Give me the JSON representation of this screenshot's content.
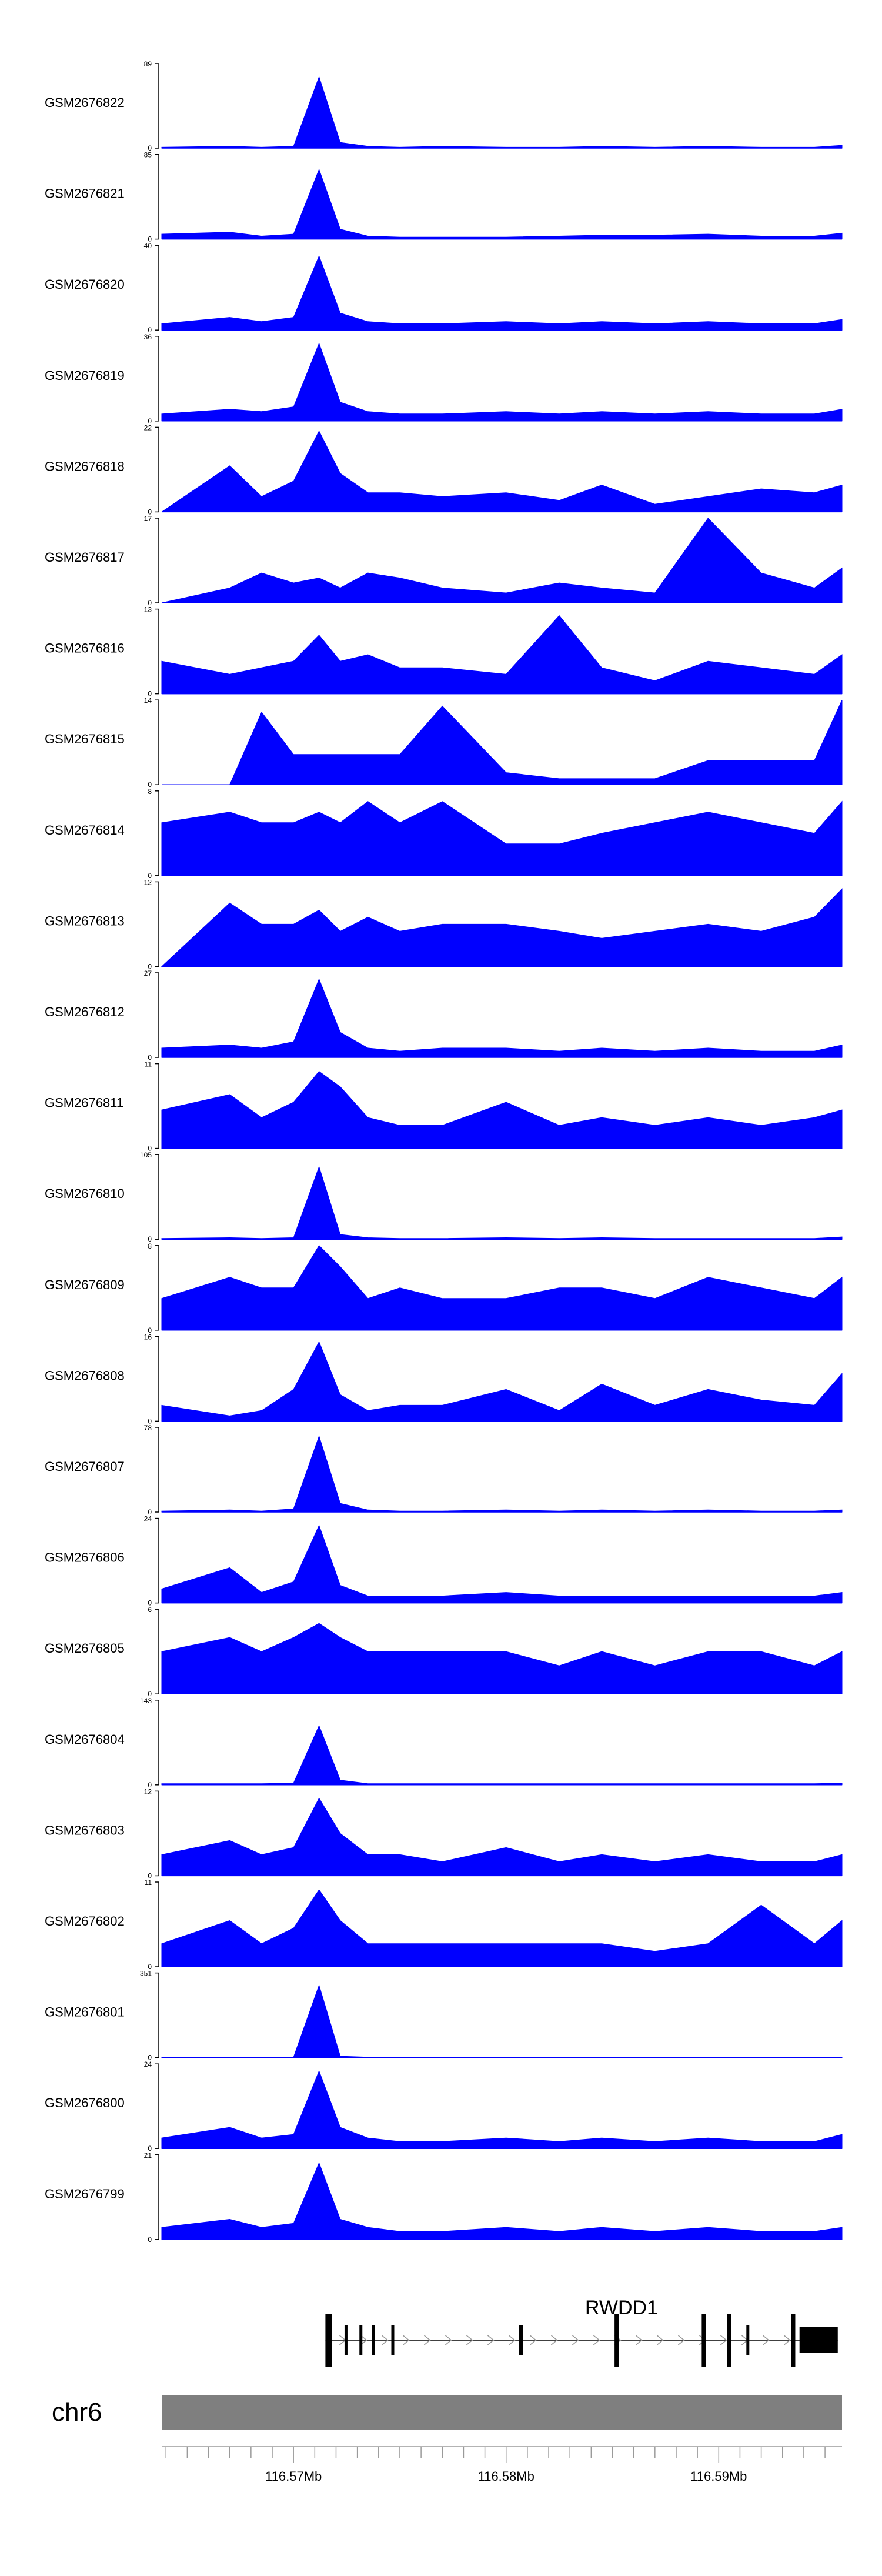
{
  "chart_data": {
    "type": "area",
    "title": "",
    "colors": {
      "fill": "#0000ff",
      "axis": "#000000",
      "ideogram": "#7f7f7f",
      "gene": "#000000",
      "intron_arrow": "#9a9a9a"
    },
    "x": [
      116.5638,
      116.567,
      116.5685,
      116.57,
      116.5712,
      116.5722,
      116.5735,
      116.575,
      116.577,
      116.58,
      116.5825,
      116.5845,
      116.587,
      116.5895,
      116.592,
      116.5945,
      116.5958
    ],
    "tracks": [
      {
        "label": "GSM2676822",
        "ymin": "0",
        "ymax": "89",
        "values": [
          1,
          2,
          1,
          2,
          75,
          6,
          2,
          1,
          2,
          1,
          1,
          2,
          1,
          2,
          1,
          1,
          3
        ]
      },
      {
        "label": "GSM2676821",
        "ymin": "0",
        "ymax": "85",
        "values": [
          5,
          7,
          3,
          5,
          70,
          10,
          3,
          2,
          2,
          2,
          3,
          4,
          4,
          5,
          3,
          3,
          6
        ]
      },
      {
        "label": "GSM2676820",
        "ymin": "0",
        "ymax": "40",
        "values": [
          3,
          6,
          4,
          6,
          35,
          8,
          4,
          3,
          3,
          4,
          3,
          4,
          3,
          4,
          3,
          3,
          5
        ]
      },
      {
        "label": "GSM2676819",
        "ymin": "0",
        "ymax": "36",
        "values": [
          3,
          5,
          4,
          6,
          33,
          8,
          4,
          3,
          3,
          4,
          3,
          4,
          3,
          4,
          3,
          3,
          5
        ]
      },
      {
        "label": "GSM2676818",
        "ymin": "0",
        "ymax": "22",
        "values": [
          0,
          12,
          4,
          8,
          21,
          10,
          5,
          5,
          4,
          5,
          3,
          7,
          2,
          4,
          6,
          5,
          7
        ]
      },
      {
        "label": "GSM2676817",
        "ymin": "0",
        "ymax": "17",
        "values": [
          0,
          3,
          6,
          4,
          5,
          3,
          6,
          5,
          3,
          2,
          4,
          3,
          2,
          17,
          6,
          3,
          7
        ]
      },
      {
        "label": "GSM2676816",
        "ymin": "0",
        "ymax": "13",
        "values": [
          5,
          3,
          4,
          5,
          9,
          5,
          6,
          4,
          4,
          3,
          12,
          4,
          2,
          5,
          4,
          3,
          6
        ]
      },
      {
        "label": "GSM2676815",
        "ymin": "0",
        "ymax": "14",
        "values": [
          0,
          0,
          12,
          5,
          5,
          5,
          5,
          5,
          13,
          2,
          1,
          1,
          1,
          4,
          4,
          4,
          14
        ]
      },
      {
        "label": "GSM2676814",
        "ymin": "0",
        "ymax": "8",
        "values": [
          5,
          6,
          5,
          5,
          6,
          5,
          7,
          5,
          7,
          3,
          3,
          4,
          5,
          6,
          5,
          4,
          7
        ]
      },
      {
        "label": "GSM2676813",
        "ymin": "0",
        "ymax": "12",
        "values": [
          0,
          9,
          6,
          6,
          8,
          5,
          7,
          5,
          6,
          6,
          5,
          4,
          5,
          6,
          5,
          7,
          11
        ]
      },
      {
        "label": "GSM2676812",
        "ymin": "0",
        "ymax": "27",
        "values": [
          3,
          4,
          3,
          5,
          25,
          8,
          3,
          2,
          3,
          3,
          2,
          3,
          2,
          3,
          2,
          2,
          4
        ]
      },
      {
        "label": "GSM2676811",
        "ymin": "0",
        "ymax": "11",
        "values": [
          5,
          7,
          4,
          6,
          10,
          8,
          4,
          3,
          3,
          6,
          3,
          4,
          3,
          4,
          3,
          4,
          5
        ]
      },
      {
        "label": "GSM2676810",
        "ymin": "0",
        "ymax": "105",
        "values": [
          1,
          2,
          1,
          2,
          90,
          6,
          2,
          1,
          1,
          2,
          1,
          2,
          1,
          1,
          1,
          1,
          3
        ]
      },
      {
        "label": "GSM2676809",
        "ymin": "0",
        "ymax": "8",
        "values": [
          3,
          5,
          4,
          4,
          8,
          6,
          3,
          4,
          3,
          3,
          4,
          4,
          3,
          5,
          4,
          3,
          5
        ]
      },
      {
        "label": "GSM2676808",
        "ymin": "0",
        "ymax": "16",
        "values": [
          3,
          1,
          2,
          6,
          15,
          5,
          2,
          3,
          3,
          6,
          2,
          7,
          3,
          6,
          4,
          3,
          9
        ]
      },
      {
        "label": "GSM2676807",
        "ymin": "0",
        "ymax": "78",
        "values": [
          1,
          2,
          1,
          3,
          70,
          8,
          2,
          1,
          1,
          2,
          1,
          2,
          1,
          2,
          1,
          1,
          2
        ]
      },
      {
        "label": "GSM2676806",
        "ymin": "0",
        "ymax": "24",
        "values": [
          4,
          10,
          3,
          6,
          22,
          5,
          2,
          2,
          2,
          3,
          2,
          2,
          2,
          2,
          2,
          2,
          3
        ]
      },
      {
        "label": "GSM2676805",
        "ymin": "0",
        "ymax": "6",
        "values": [
          3,
          4,
          3,
          4,
          5,
          4,
          3,
          3,
          3,
          3,
          2,
          3,
          2,
          3,
          3,
          2,
          3
        ]
      },
      {
        "label": "GSM2676804",
        "ymin": "0",
        "ymax": "143",
        "values": [
          2,
          2,
          2,
          3,
          100,
          8,
          2,
          2,
          2,
          2,
          2,
          2,
          2,
          2,
          2,
          2,
          3
        ]
      },
      {
        "label": "GSM2676803",
        "ymin": "0",
        "ymax": "12",
        "values": [
          3,
          5,
          3,
          4,
          11,
          6,
          3,
          3,
          2,
          4,
          2,
          3,
          2,
          3,
          2,
          2,
          3
        ]
      },
      {
        "label": "GSM2676802",
        "ymin": "0",
        "ymax": "11",
        "values": [
          3,
          6,
          3,
          5,
          10,
          6,
          3,
          3,
          3,
          3,
          3,
          3,
          2,
          3,
          8,
          3,
          6
        ]
      },
      {
        "label": "GSM2676801",
        "ymin": "0",
        "ymax": "351",
        "values": [
          1,
          1,
          1,
          2,
          300,
          6,
          2,
          1,
          1,
          1,
          1,
          1,
          1,
          1,
          1,
          1,
          2
        ]
      },
      {
        "label": "GSM2676800",
        "ymin": "0",
        "ymax": "24",
        "values": [
          3,
          6,
          3,
          4,
          22,
          6,
          3,
          2,
          2,
          3,
          2,
          3,
          2,
          3,
          2,
          2,
          4
        ]
      },
      {
        "label": "GSM2676799",
        "ymin": "0",
        "ymax": "21",
        "values": [
          3,
          5,
          3,
          4,
          19,
          5,
          3,
          2,
          2,
          3,
          2,
          3,
          2,
          3,
          2,
          2,
          3
        ]
      }
    ],
    "gene": {
      "name": "RWDD1",
      "start": 116.5715,
      "end": 116.5956,
      "exons": [
        [
          116.5715,
          116.5718
        ],
        [
          116.5724,
          116.5725
        ],
        [
          116.5731,
          116.5732
        ],
        [
          116.5737,
          116.5738
        ],
        [
          116.5746,
          116.5747
        ],
        [
          116.5806,
          116.5808
        ],
        [
          116.5851,
          116.5853
        ],
        [
          116.5892,
          116.5894
        ],
        [
          116.5904,
          116.5906
        ],
        [
          116.5913,
          116.5914
        ],
        [
          116.5934,
          116.5936
        ],
        [
          116.5938,
          116.5956
        ]
      ]
    },
    "ideogram": {
      "chromosome": "chr6"
    },
    "axis": {
      "range": [
        116.5638,
        116.5958
      ],
      "ticks": [
        116.564,
        116.565,
        116.566,
        116.567,
        116.568,
        116.569,
        116.57,
        116.571,
        116.572,
        116.573,
        116.574,
        116.575,
        116.576,
        116.577,
        116.578,
        116.579,
        116.58,
        116.581,
        116.582,
        116.583,
        116.584,
        116.585,
        116.586,
        116.587,
        116.588,
        116.589,
        116.59,
        116.591,
        116.592,
        116.593,
        116.594,
        116.595
      ],
      "labels": [
        {
          "at": 116.57,
          "text": "116.57Mb"
        },
        {
          "at": 116.58,
          "text": "116.58Mb"
        },
        {
          "at": 116.59,
          "text": "116.59Mb"
        }
      ]
    }
  }
}
